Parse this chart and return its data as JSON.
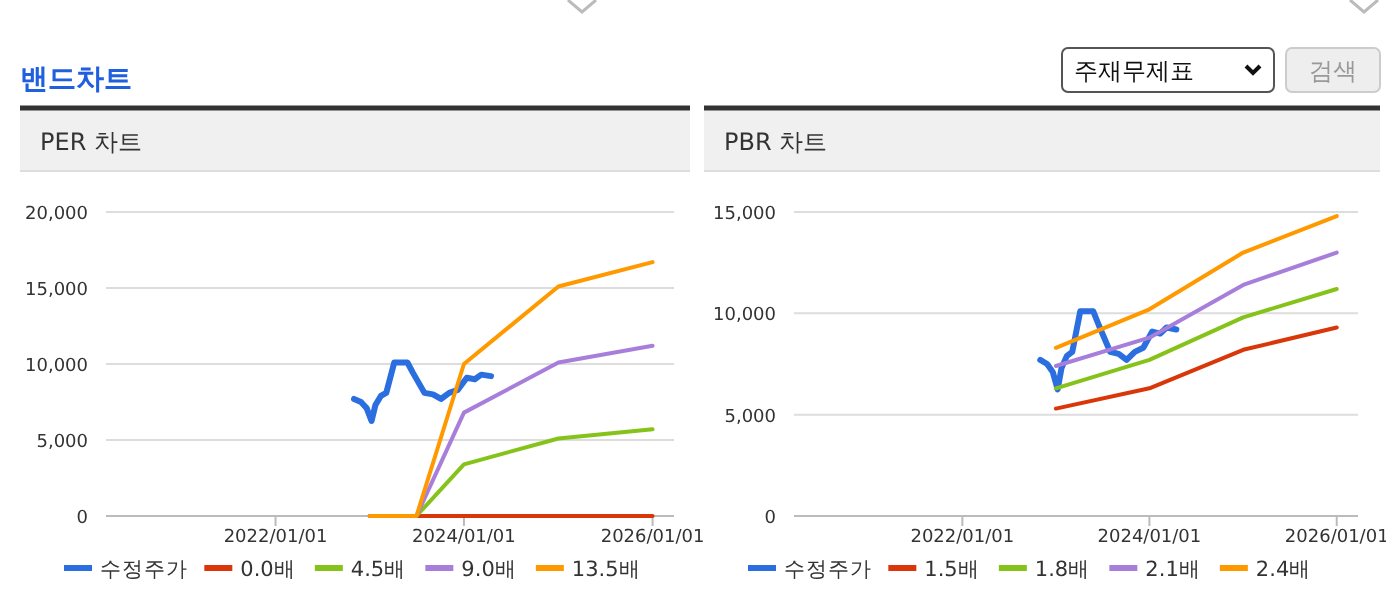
{
  "chart_data": [
    {
      "type": "other",
      "title": "밴드차트",
      "annotations": [
        "주재무제표",
        "검색"
      ]
    },
    {
      "type": "line",
      "title": "PER 차트",
      "x": [
        "2023-01-01",
        "2023-07-01",
        "2024-01-01",
        "2025-01-01",
        "2026-01-01"
      ],
      "series": [
        {
          "name": "수정주가",
          "color": "#2a6ee0",
          "x": [
            "2022-11-01",
            "2022-11-28",
            "2022-12-20",
            "2023-01-08",
            "2023-01-23",
            "2023-02-13",
            "2023-03-06",
            "2023-04-06",
            "2023-05-27",
            "2023-06-18",
            "2023-08-01",
            "2023-09-03",
            "2023-10-04",
            "2023-11-05",
            "2023-12-08",
            "2024-01-12",
            "2024-02-12",
            "2024-03-08",
            "2024-04-15"
          ],
          "values": [
            7700,
            7500,
            7100,
            6250,
            7300,
            7900,
            8100,
            10100,
            10100,
            9400,
            8100,
            8000,
            7700,
            8100,
            8300,
            9100,
            9000,
            9300,
            9200
          ]
        },
        {
          "name": "0.0배",
          "color": "#d9370a",
          "values": [
            0,
            0,
            0,
            0,
            0
          ]
        },
        {
          "name": "4.5배",
          "color": "#86c31a",
          "values": [
            0,
            0,
            3400,
            5100,
            5700
          ]
        },
        {
          "name": "9.0배",
          "color": "#a77fdb",
          "values": [
            0,
            0,
            6800,
            10100,
            11200
          ]
        },
        {
          "name": "13.5배",
          "color": "#ff9900",
          "values": [
            0,
            0,
            10000,
            15100,
            16700
          ]
        }
      ],
      "xlim": [
        "2020-03-15",
        "2026-03-25"
      ],
      "xticks": [
        {
          "value": "2022-01-01",
          "label": "2022/01/01"
        },
        {
          "value": "2024-01-01",
          "label": "2024/01/01"
        },
        {
          "value": "2026-01-01",
          "label": "2026/01/01"
        }
      ],
      "ylim": [
        0,
        20000
      ],
      "yticks": [
        {
          "value": 0,
          "label": "0"
        },
        {
          "value": 5000,
          "label": "5,000"
        },
        {
          "value": 10000,
          "label": "10,000"
        },
        {
          "value": 15000,
          "label": "15,000"
        },
        {
          "value": 20000,
          "label": "20,000"
        }
      ],
      "grid": "y",
      "legend": "bottom"
    },
    {
      "type": "line",
      "title": "PBR 차트",
      "x": [
        "2023-01-01",
        "2024-01-01",
        "2025-01-01",
        "2026-01-01"
      ],
      "series": [
        {
          "name": "수정주가",
          "color": "#2a6ee0",
          "x": [
            "2022-11-01",
            "2022-11-28",
            "2022-12-20",
            "2023-01-08",
            "2023-01-23",
            "2023-02-13",
            "2023-03-06",
            "2023-04-06",
            "2023-05-27",
            "2023-06-18",
            "2023-08-01",
            "2023-09-03",
            "2023-10-04",
            "2023-11-05",
            "2023-12-08",
            "2024-01-12",
            "2024-02-12",
            "2024-03-08",
            "2024-04-15"
          ],
          "values": [
            7700,
            7500,
            7100,
            6250,
            7300,
            7900,
            8100,
            10100,
            10100,
            9400,
            8100,
            8000,
            7700,
            8100,
            8300,
            9100,
            9000,
            9300,
            9200
          ]
        },
        {
          "name": "1.5배",
          "color": "#d9370a",
          "values": [
            5300,
            6300,
            8200,
            9300
          ]
        },
        {
          "name": "1.8배",
          "color": "#86c31a",
          "values": [
            6300,
            7700,
            9800,
            11200
          ]
        },
        {
          "name": "2.1배",
          "color": "#a77fdb",
          "values": [
            7400,
            8800,
            11400,
            13000
          ]
        },
        {
          "name": "2.4배",
          "color": "#ff9900",
          "values": [
            8300,
            10200,
            13000,
            14800
          ]
        }
      ],
      "xlim": [
        "2020-03-15",
        "2026-03-25"
      ],
      "xticks": [
        {
          "value": "2022-01-01",
          "label": "2022/01/01"
        },
        {
          "value": "2024-01-01",
          "label": "2024/01/01"
        },
        {
          "value": "2026-01-01",
          "label": "2026/01/01"
        }
      ],
      "ylim": [
        0,
        15000
      ],
      "yticks": [
        {
          "value": 0,
          "label": "0"
        },
        {
          "value": 5000,
          "label": "5,000"
        },
        {
          "value": 10000,
          "label": "10,000"
        },
        {
          "value": 15000,
          "label": "15,000"
        }
      ],
      "grid": "y",
      "legend": "bottom"
    }
  ]
}
